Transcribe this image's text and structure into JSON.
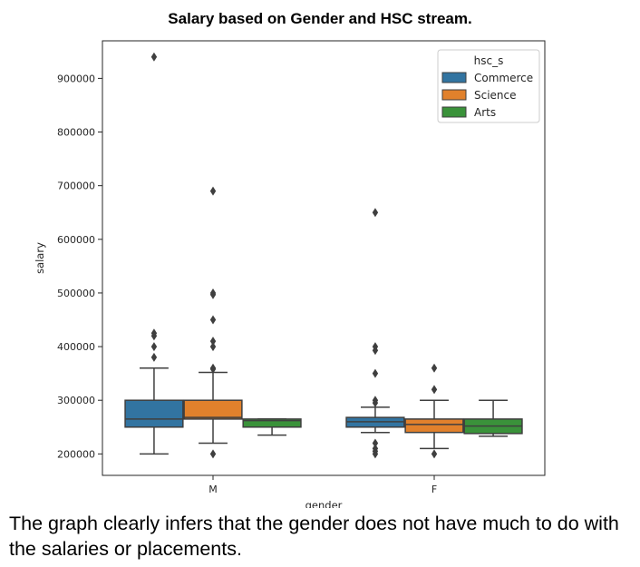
{
  "title": "Salary based on Gender and HSC stream.",
  "caption": "The graph clearly infers that the gender does not have much to do with the salaries or placements.",
  "chart_data": {
    "type": "box",
    "xlabel": "gender",
    "ylabel": "salary",
    "categories": [
      "M",
      "F"
    ],
    "ylim": [
      160000,
      970000
    ],
    "yticks": [
      200000,
      300000,
      400000,
      500000,
      600000,
      700000,
      800000,
      900000
    ],
    "yticklabels": [
      "200000",
      "300000",
      "400000",
      "500000",
      "600000",
      "700000",
      "800000",
      "900000"
    ],
    "grid": false,
    "legend": {
      "title": "hsc_s",
      "placement": "top-right"
    },
    "series": [
      {
        "name": "Commerce",
        "color": "#3274a1",
        "boxes": [
          {
            "category": "M",
            "whisker_low": 200000,
            "q1": 250000,
            "median": 265000,
            "q3": 300000,
            "whisker_high": 360000,
            "outliers": [
              940000,
              425000,
              420000,
              400000,
              380000
            ]
          },
          {
            "category": "F",
            "whisker_low": 240000,
            "q1": 250000,
            "median": 260000,
            "q3": 268000,
            "whisker_high": 287000,
            "outliers": [
              650000,
              400000,
              393000,
              350000,
              300000,
              295000,
              220000,
              210000,
              205000,
              200000
            ]
          }
        ]
      },
      {
        "name": "Science",
        "color": "#e1812c",
        "boxes": [
          {
            "category": "M",
            "whisker_low": 220000,
            "q1": 265000,
            "median": 268000,
            "q3": 300000,
            "whisker_high": 352000,
            "outliers": [
              690000,
              500000,
              497000,
              450000,
              410000,
              400000,
              360000,
              358000,
              200000
            ]
          },
          {
            "category": "F",
            "whisker_low": 210000,
            "q1": 240000,
            "median": 255000,
            "q3": 265000,
            "whisker_high": 300000,
            "outliers": [
              360000,
              320000,
              200000
            ]
          }
        ]
      },
      {
        "name": "Arts",
        "color": "#3a923a",
        "boxes": [
          {
            "category": "M",
            "whisker_low": 235000,
            "q1": 250000,
            "median": 262000,
            "q3": 265000,
            "whisker_high": 265000,
            "outliers": []
          },
          {
            "category": "F",
            "whisker_low": 233000,
            "q1": 238000,
            "median": 252000,
            "q3": 265000,
            "whisker_high": 300000,
            "outliers": []
          }
        ]
      }
    ]
  }
}
